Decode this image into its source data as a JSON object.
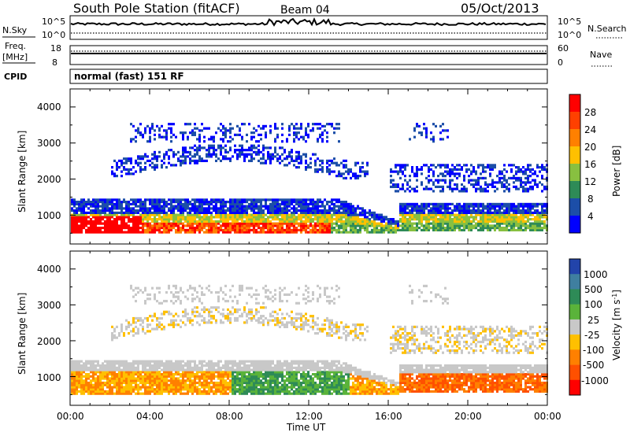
{
  "header": {
    "station": "South Pole Station (fitACF)",
    "beam": "Beam 04",
    "date": "05/Oct/2013"
  },
  "top_panels": {
    "nsky_label": "N.Sky",
    "nsky_ticks": [
      "10^5",
      "10^0"
    ],
    "nsearch_label": "N.Search",
    "freq_label": "Freq.",
    "freq_unit": "[MHz]",
    "freq_ticks": [
      "18",
      "8"
    ],
    "nave_ticks": [
      "60",
      "0"
    ],
    "nave_label": "Nave",
    "cpid_label": "CPID",
    "cpid_text": "normal (fast) 151 RF"
  },
  "chart_data": [
    {
      "type": "heatmap",
      "name": "power",
      "ylabel": "Slant Range [km]",
      "ylim": [
        200,
        4500
      ],
      "yticks": [
        "4000",
        "3000",
        "2000",
        "1000"
      ],
      "xlim": [
        0,
        24
      ],
      "colorbar": {
        "label": "Power [dB]",
        "ticks": [
          "28",
          "24",
          "20",
          "16",
          "12",
          "8",
          "4"
        ],
        "colors": [
          "#ff0000",
          "#ff4000",
          "#ff8000",
          "#ffc000",
          "#88c040",
          "#2e8b57",
          "#1c4ea8",
          "#0000ff"
        ]
      }
    },
    {
      "type": "heatmap",
      "name": "velocity",
      "ylabel": "Slant Range [km]",
      "ylim": [
        200,
        4500
      ],
      "yticks": [
        "4000",
        "3000",
        "2000",
        "1000"
      ],
      "xlim": [
        0,
        24
      ],
      "colorbar": {
        "label": "Velocity [m s",
        "label_sup": "-1",
        "label_close": "]",
        "ticks": [
          "1000",
          "500",
          "100",
          "25",
          "-25",
          "-100",
          "-500",
          "-1000"
        ],
        "colors": [
          "#2244aa",
          "#3f7fa0",
          "#2e8b57",
          "#5ab33a",
          "#c8c8c8",
          "#ffc000",
          "#ff8000",
          "#ff5000",
          "#ff0000"
        ]
      }
    }
  ],
  "xaxis": {
    "ticks": [
      "00:00",
      "04:00",
      "08:00",
      "12:00",
      "16:00",
      "20:00",
      "00:00"
    ],
    "label": "Time UT"
  },
  "colors": {
    "ground_scatter": "#c8c8c8",
    "frame": "#000000"
  }
}
